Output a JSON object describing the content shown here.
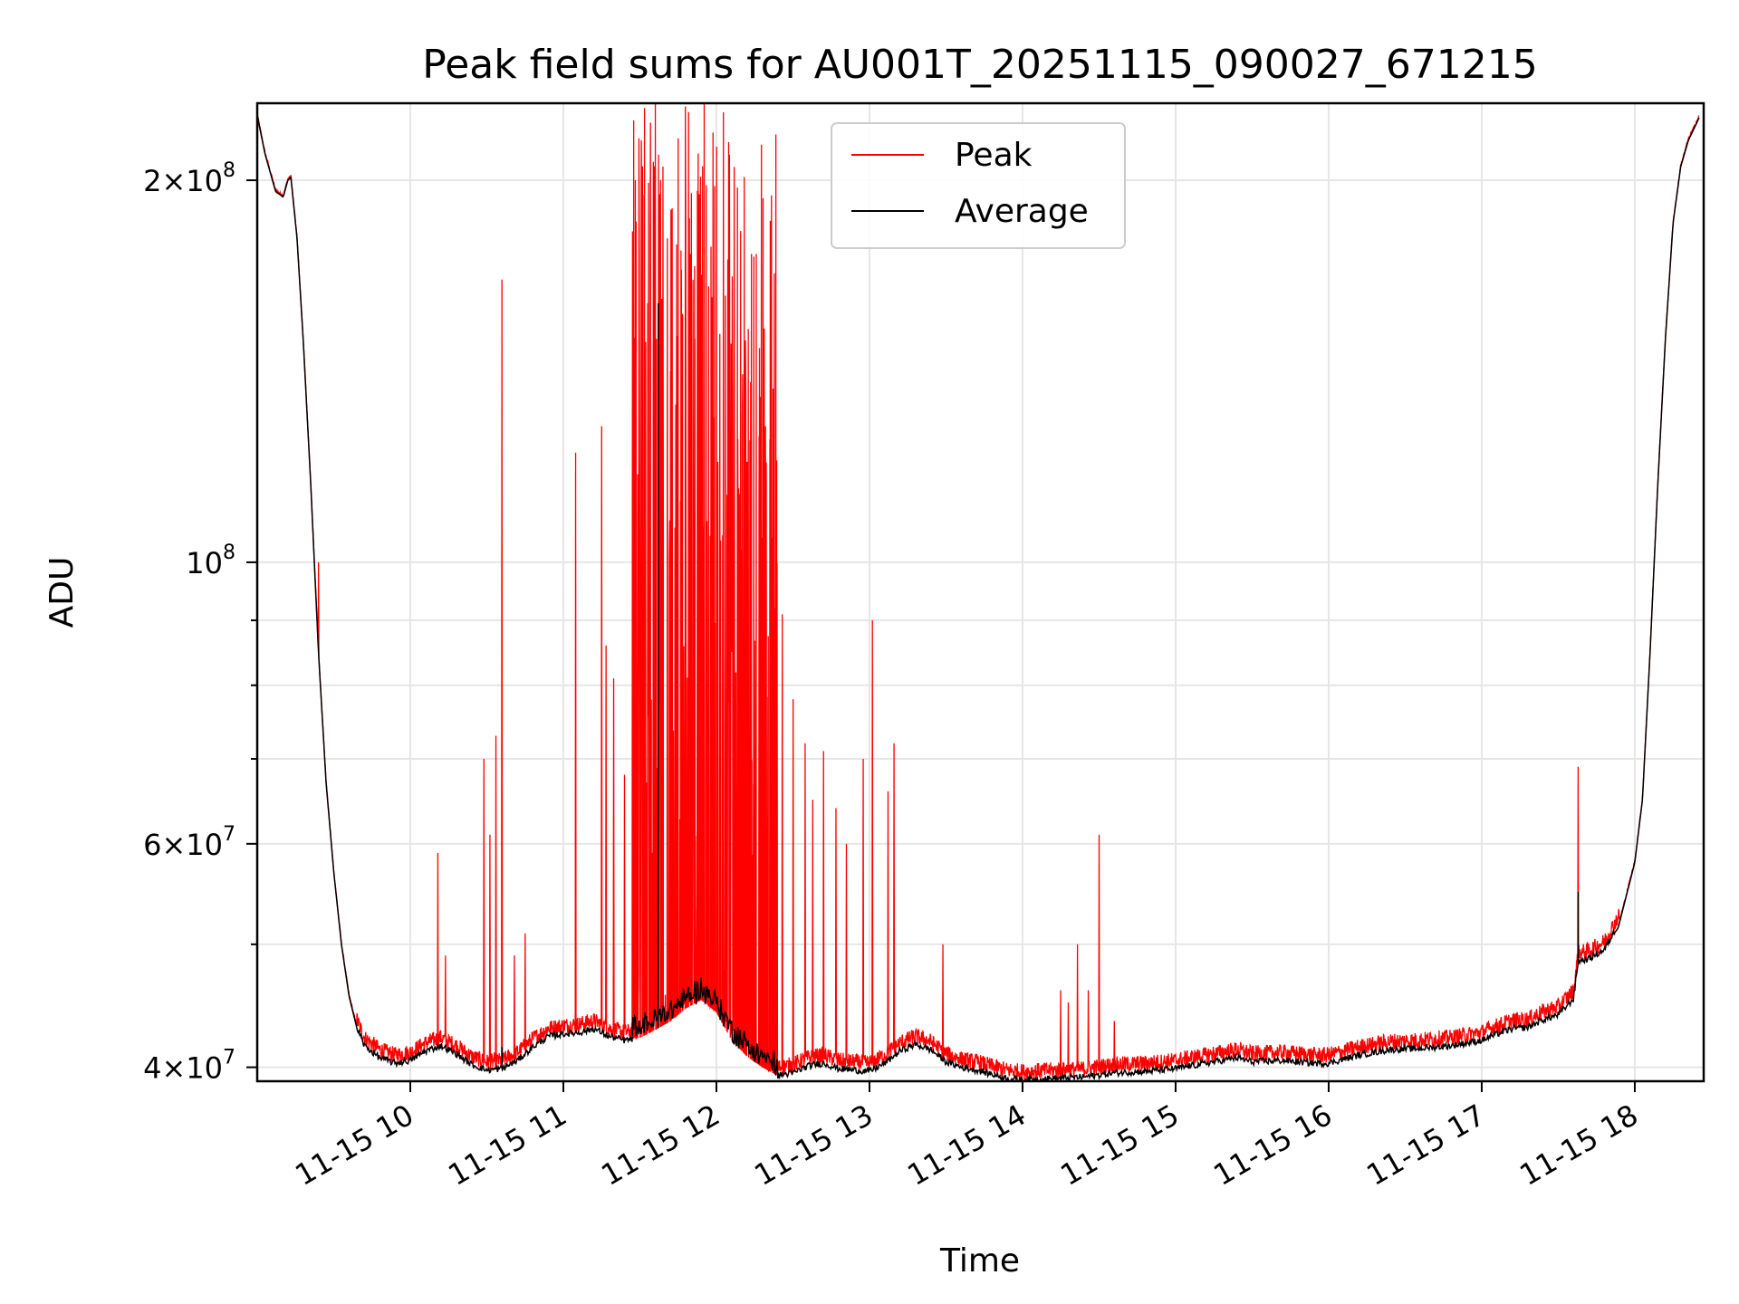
{
  "chart_data": {
    "type": "line",
    "title": "Peak field sums for AU001T_20251115_090027_671215",
    "xlabel": "Time",
    "ylabel": "ADU",
    "yscale": "log",
    "xlim": [
      9.0,
      18.45
    ],
    "ylim": [
      39000000,
      230000000
    ],
    "grid": true,
    "legend_position": "upper-center",
    "x_ticks": [
      {
        "value": 10,
        "label": "11-15 10"
      },
      {
        "value": 11,
        "label": "11-15 11"
      },
      {
        "value": 12,
        "label": "11-15 12"
      },
      {
        "value": 13,
        "label": "11-15 13"
      },
      {
        "value": 14,
        "label": "11-15 14"
      },
      {
        "value": 15,
        "label": "11-15 15"
      },
      {
        "value": 16,
        "label": "11-15 16"
      },
      {
        "value": 17,
        "label": "11-15 17"
      },
      {
        "value": 18,
        "label": "11-15 18"
      }
    ],
    "y_major_ticks": [
      {
        "value": 40000000,
        "base": "4",
        "exp": "7"
      },
      {
        "value": 60000000,
        "base": "6",
        "exp": "7"
      },
      {
        "value": 100000000,
        "base": "10",
        "exp": "8"
      },
      {
        "value": 200000000,
        "base": "2",
        "exp": "8"
      }
    ],
    "y_minor_ticks": [
      50000000,
      70000000,
      80000000,
      90000000
    ],
    "times_sign": "×",
    "series": [
      {
        "name": "Peak",
        "color": "#ff0000"
      },
      {
        "name": "Average",
        "color": "#000000"
      }
    ],
    "average_baseline": [
      [
        9.0,
        225000000
      ],
      [
        9.05,
        210000000
      ],
      [
        9.12,
        196000000
      ],
      [
        9.17,
        194000000
      ],
      [
        9.2,
        200000000
      ],
      [
        9.22,
        201000000
      ],
      [
        9.26,
        180000000
      ],
      [
        9.3,
        150000000
      ],
      [
        9.35,
        115000000
      ],
      [
        9.4,
        85000000
      ],
      [
        9.45,
        67000000
      ],
      [
        9.5,
        57000000
      ],
      [
        9.55,
        50000000
      ],
      [
        9.6,
        45500000
      ],
      [
        9.65,
        43000000
      ],
      [
        9.7,
        41600000
      ],
      [
        9.8,
        40700000
      ],
      [
        9.9,
        40300000
      ],
      [
        10.0,
        40500000
      ],
      [
        10.1,
        41200000
      ],
      [
        10.2,
        41600000
      ],
      [
        10.3,
        41000000
      ],
      [
        10.4,
        40200000
      ],
      [
        10.5,
        39800000
      ],
      [
        10.6,
        39900000
      ],
      [
        10.7,
        40500000
      ],
      [
        10.8,
        41500000
      ],
      [
        10.9,
        42300000
      ],
      [
        11.0,
        42500000
      ],
      [
        11.1,
        42600000
      ],
      [
        11.2,
        42900000
      ],
      [
        11.3,
        42300000
      ],
      [
        11.4,
        42000000
      ],
      [
        11.5,
        42200000
      ],
      [
        11.6,
        42800000
      ],
      [
        11.7,
        43500000
      ],
      [
        11.8,
        44500000
      ],
      [
        11.9,
        45200000
      ],
      [
        12.0,
        44200000
      ],
      [
        12.1,
        42000000
      ],
      [
        12.2,
        40800000
      ],
      [
        12.3,
        40000000
      ],
      [
        12.4,
        39400000
      ],
      [
        12.5,
        39600000
      ],
      [
        12.6,
        40100000
      ],
      [
        12.7,
        40300000
      ],
      [
        12.8,
        39900000
      ],
      [
        12.9,
        39800000
      ],
      [
        13.0,
        39700000
      ],
      [
        13.1,
        40300000
      ],
      [
        13.2,
        41200000
      ],
      [
        13.3,
        41700000
      ],
      [
        13.4,
        41300000
      ],
      [
        13.5,
        40400000
      ],
      [
        13.6,
        40000000
      ],
      [
        13.7,
        39800000
      ],
      [
        13.8,
        39500000
      ],
      [
        13.9,
        39200000
      ],
      [
        14.0,
        39100000
      ],
      [
        14.2,
        39200000
      ],
      [
        14.4,
        39300000
      ],
      [
        14.6,
        39600000
      ],
      [
        14.8,
        39700000
      ],
      [
        15.0,
        39900000
      ],
      [
        15.2,
        40300000
      ],
      [
        15.4,
        40700000
      ],
      [
        15.5,
        40400000
      ],
      [
        15.7,
        40500000
      ],
      [
        15.9,
        40300000
      ],
      [
        16.0,
        40300000
      ],
      [
        16.2,
        40900000
      ],
      [
        16.4,
        41300000
      ],
      [
        16.6,
        41400000
      ],
      [
        16.8,
        41600000
      ],
      [
        17.0,
        42000000
      ],
      [
        17.1,
        42500000
      ],
      [
        17.2,
        42900000
      ],
      [
        17.3,
        43000000
      ],
      [
        17.4,
        43600000
      ],
      [
        17.5,
        44000000
      ],
      [
        17.6,
        45300000
      ],
      [
        17.63,
        48500000
      ],
      [
        17.7,
        48700000
      ],
      [
        17.8,
        49500000
      ],
      [
        17.9,
        52000000
      ],
      [
        18.0,
        58000000
      ],
      [
        18.05,
        65000000
      ],
      [
        18.1,
        85000000
      ],
      [
        18.15,
        115000000
      ],
      [
        18.2,
        150000000
      ],
      [
        18.25,
        185000000
      ],
      [
        18.3,
        205000000
      ],
      [
        18.35,
        215000000
      ],
      [
        18.42,
        224000000
      ]
    ],
    "peak_spikes": [
      [
        9.4,
        100000000
      ],
      [
        10.18,
        59000000
      ],
      [
        10.23,
        49000000
      ],
      [
        10.48,
        70000000
      ],
      [
        10.52,
        61000000
      ],
      [
        10.56,
        73000000
      ],
      [
        10.6,
        167000000
      ],
      [
        10.68,
        49000000
      ],
      [
        10.75,
        51000000
      ],
      [
        11.08,
        122000000
      ],
      [
        11.25,
        128000000
      ],
      [
        11.28,
        86000000
      ],
      [
        11.33,
        81000000
      ],
      [
        11.4,
        68000000
      ],
      [
        11.47,
        200000000
      ],
      [
        11.51,
        215000000
      ],
      [
        11.53,
        228000000
      ],
      [
        11.55,
        160000000
      ],
      [
        11.57,
        222000000
      ],
      [
        11.6,
        230000000
      ],
      [
        11.63,
        195000000
      ],
      [
        11.65,
        205000000
      ],
      [
        11.68,
        180000000
      ],
      [
        11.71,
        190000000
      ],
      [
        11.74,
        178000000
      ],
      [
        11.77,
        170000000
      ],
      [
        11.8,
        187000000
      ],
      [
        11.83,
        175000000
      ],
      [
        11.86,
        150000000
      ],
      [
        11.89,
        195000000
      ],
      [
        11.92,
        230000000
      ],
      [
        11.95,
        165000000
      ],
      [
        11.98,
        130000000
      ],
      [
        12.01,
        120000000
      ],
      [
        12.04,
        105000000
      ],
      [
        12.07,
        113000000
      ],
      [
        12.1,
        85000000
      ],
      [
        12.14,
        125000000
      ],
      [
        12.17,
        130000000
      ],
      [
        12.2,
        120000000
      ],
      [
        12.23,
        175000000
      ],
      [
        12.26,
        175000000
      ],
      [
        12.29,
        135000000
      ],
      [
        12.32,
        128000000
      ],
      [
        12.35,
        125000000
      ],
      [
        12.38,
        92000000
      ],
      [
        12.43,
        91000000
      ],
      [
        12.5,
        78000000
      ],
      [
        12.58,
        72000000
      ],
      [
        12.63,
        65000000
      ],
      [
        12.7,
        71000000
      ],
      [
        12.78,
        64000000
      ],
      [
        12.85,
        60000000
      ],
      [
        12.96,
        70000000
      ],
      [
        13.02,
        90000000
      ],
      [
        13.12,
        66000000
      ],
      [
        13.16,
        72000000
      ],
      [
        13.48,
        50000000
      ],
      [
        14.25,
        46000000
      ],
      [
        14.3,
        45000000
      ],
      [
        14.36,
        50000000
      ],
      [
        14.43,
        46000000
      ],
      [
        14.5,
        61000000
      ],
      [
        14.6,
        43500000
      ],
      [
        17.63,
        69000000
      ]
    ],
    "peak_dense_band": {
      "from": 11.45,
      "to": 12.4,
      "max": 230000000
    }
  }
}
